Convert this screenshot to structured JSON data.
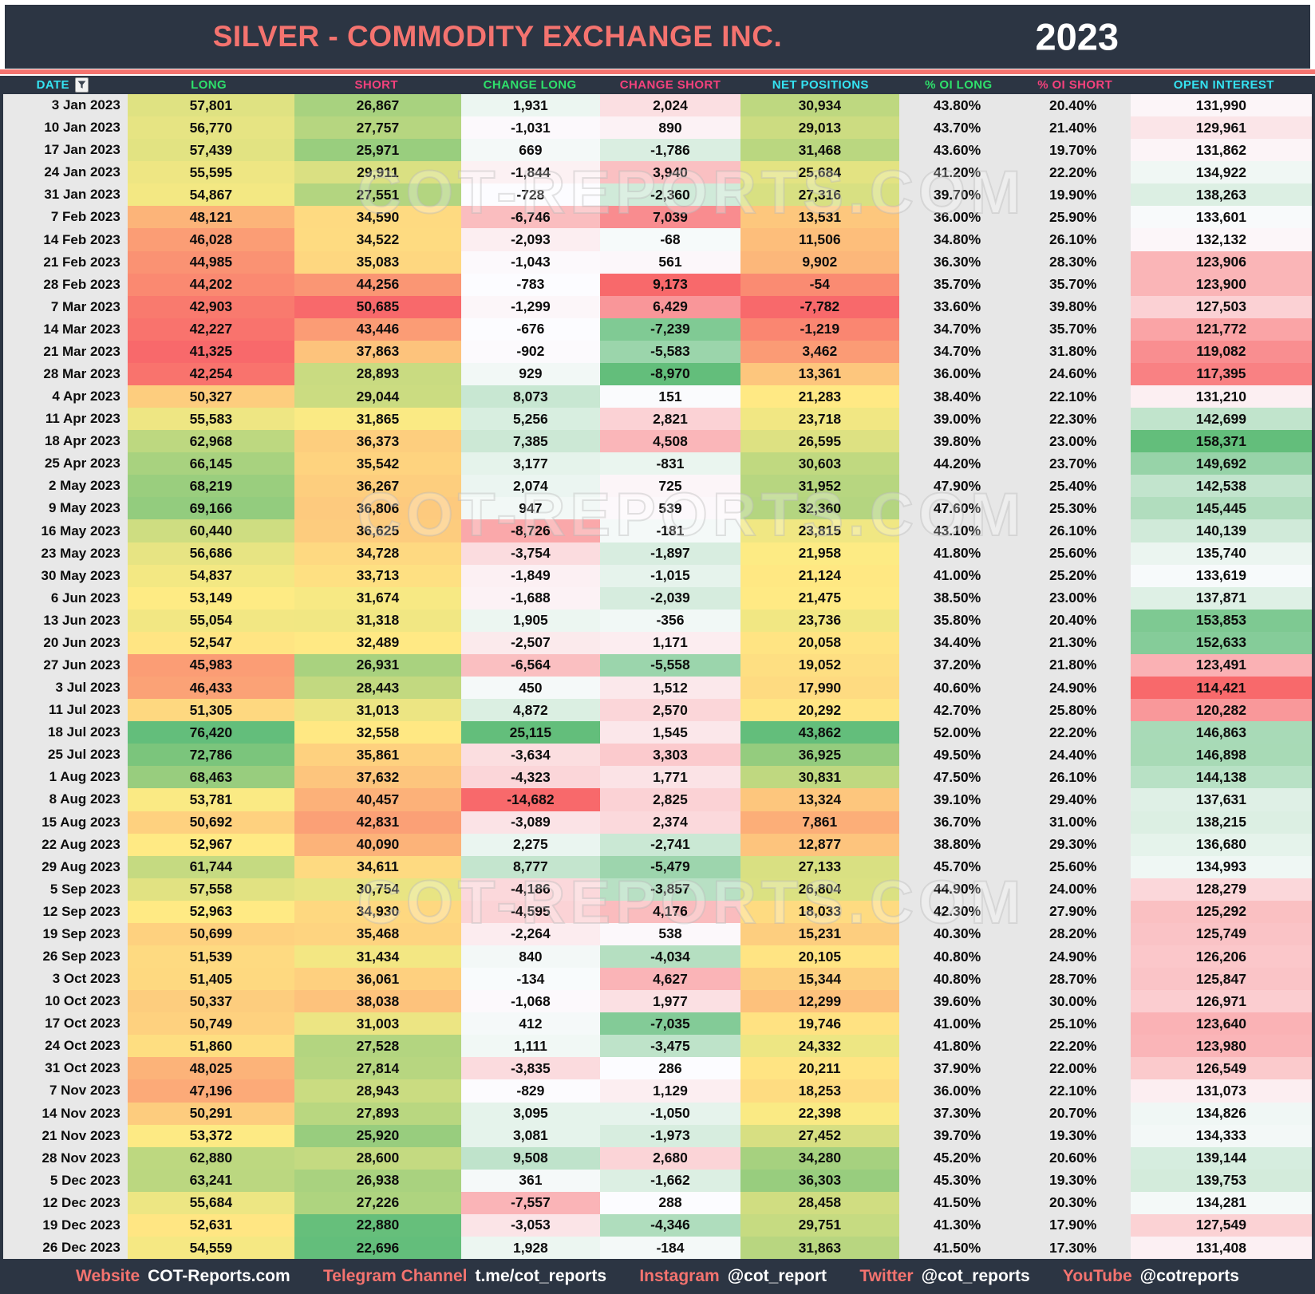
{
  "header": {
    "title": "SILVER - COMMODITY EXCHANGE INC.",
    "year": "2023"
  },
  "watermark": {
    "text": "COT-REPORTS.COM"
  },
  "colors": {
    "navy": "#2c3543",
    "accent_salmon": "#f4736f",
    "header_cyan": "#35e3f2",
    "header_green": "#2ee06b",
    "header_pink": "#f4417c",
    "date_column_bg": "#e8e8e8",
    "pct_column_bg": "#e7e7e7",
    "scale_red": "#F8696B",
    "scale_yellow": "#FFEB84",
    "scale_green": "#63BE7B",
    "scale_white": "#FCFCFF"
  },
  "chart_data": {
    "type": "table",
    "title": "SILVER - COMMODITY EXCHANGE INC.",
    "year": "2023",
    "legend_position": "none",
    "grid": false,
    "columns": [
      {
        "key": "date",
        "label": "DATE",
        "header_color": "cyan",
        "scale": "none",
        "format": "text",
        "width_pct": 9.5,
        "icon": "funnel-icon"
      },
      {
        "key": "long",
        "label": "LONG",
        "header_color": "green",
        "scale": "ryg",
        "format": "int",
        "width_pct": 12.75
      },
      {
        "key": "short",
        "label": "SHORT",
        "header_color": "pink",
        "scale": "gyr",
        "format": "int",
        "width_pct": 12.75
      },
      {
        "key": "change_long",
        "label": "CHANGE LONG",
        "header_color": "green",
        "scale": "rwg",
        "format": "int",
        "width_pct": 10.6
      },
      {
        "key": "change_short",
        "label": "CHANGE SHORT",
        "header_color": "pink",
        "scale": "gwr",
        "format": "int",
        "width_pct": 10.75
      },
      {
        "key": "net_positions",
        "label": "NET POSITIONS",
        "header_color": "cyan",
        "scale": "ryg",
        "format": "int",
        "width_pct": 12.1
      },
      {
        "key": "pct_oi_long",
        "label": "% OI LONG",
        "header_color": "green",
        "scale": "flat",
        "format": "pct",
        "width_pct": 8.9
      },
      {
        "key": "pct_oi_short",
        "label": "% OI SHORT",
        "header_color": "pink",
        "scale": "flat",
        "format": "pct",
        "width_pct": 8.8
      },
      {
        "key": "open_interest",
        "label": "OPEN INTEREST",
        "header_color": "cyan",
        "scale": "rwg",
        "format": "int",
        "width_pct": 13.85
      }
    ],
    "rows": [
      [
        "3 Jan 2023",
        57801,
        26867,
        1931,
        2024,
        30934,
        43.8,
        20.4,
        131990
      ],
      [
        "10 Jan 2023",
        56770,
        27757,
        -1031,
        890,
        29013,
        43.7,
        21.4,
        129961
      ],
      [
        "17 Jan 2023",
        57439,
        25971,
        669,
        -1786,
        31468,
        43.6,
        19.7,
        131862
      ],
      [
        "24 Jan 2023",
        55595,
        29911,
        -1844,
        3940,
        25684,
        41.2,
        22.2,
        134922
      ],
      [
        "31 Jan 2023",
        54867,
        27551,
        -728,
        -2360,
        27316,
        39.7,
        19.9,
        138263
      ],
      [
        "7 Feb 2023",
        48121,
        34590,
        -6746,
        7039,
        13531,
        36.0,
        25.9,
        133601
      ],
      [
        "14 Feb 2023",
        46028,
        34522,
        -2093,
        -68,
        11506,
        34.8,
        26.1,
        132132
      ],
      [
        "21 Feb 2023",
        44985,
        35083,
        -1043,
        561,
        9902,
        36.3,
        28.3,
        123906
      ],
      [
        "28 Feb 2023",
        44202,
        44256,
        -783,
        9173,
        -54,
        35.7,
        35.7,
        123900
      ],
      [
        "7 Mar 2023",
        42903,
        50685,
        -1299,
        6429,
        -7782,
        33.6,
        39.8,
        127503
      ],
      [
        "14 Mar 2023",
        42227,
        43446,
        -676,
        -7239,
        -1219,
        34.7,
        35.7,
        121772
      ],
      [
        "21 Mar 2023",
        41325,
        37863,
        -902,
        -5583,
        3462,
        34.7,
        31.8,
        119082
      ],
      [
        "28 Mar 2023",
        42254,
        28893,
        929,
        -8970,
        13361,
        36.0,
        24.6,
        117395
      ],
      [
        "4 Apr 2023",
        50327,
        29044,
        8073,
        151,
        21283,
        38.4,
        22.1,
        131210
      ],
      [
        "11 Apr 2023",
        55583,
        31865,
        5256,
        2821,
        23718,
        39.0,
        22.3,
        142699
      ],
      [
        "18 Apr 2023",
        62968,
        36373,
        7385,
        4508,
        26595,
        39.8,
        23.0,
        158371
      ],
      [
        "25 Apr 2023",
        66145,
        35542,
        3177,
        -831,
        30603,
        44.2,
        23.7,
        149692
      ],
      [
        "2 May 2023",
        68219,
        36267,
        2074,
        725,
        31952,
        47.9,
        25.4,
        142538
      ],
      [
        "9 May 2023",
        69166,
        36806,
        947,
        539,
        32360,
        47.6,
        25.3,
        145445
      ],
      [
        "16 May 2023",
        60440,
        36625,
        -8726,
        -181,
        23815,
        43.1,
        26.1,
        140139
      ],
      [
        "23 May 2023",
        56686,
        34728,
        -3754,
        -1897,
        21958,
        41.8,
        25.6,
        135740
      ],
      [
        "30 May 2023",
        54837,
        33713,
        -1849,
        -1015,
        21124,
        41.0,
        25.2,
        133619
      ],
      [
        "6 Jun 2023",
        53149,
        31674,
        -1688,
        -2039,
        21475,
        38.5,
        23.0,
        137871
      ],
      [
        "13 Jun 2023",
        55054,
        31318,
        1905,
        -356,
        23736,
        35.8,
        20.4,
        153853
      ],
      [
        "20 Jun 2023",
        52547,
        32489,
        -2507,
        1171,
        20058,
        34.4,
        21.3,
        152633
      ],
      [
        "27 Jun 2023",
        45983,
        26931,
        -6564,
        -5558,
        19052,
        37.2,
        21.8,
        123491
      ],
      [
        "3 Jul 2023",
        46433,
        28443,
        450,
        1512,
        17990,
        40.6,
        24.9,
        114421
      ],
      [
        "11 Jul 2023",
        51305,
        31013,
        4872,
        2570,
        20292,
        42.7,
        25.8,
        120282
      ],
      [
        "18 Jul 2023",
        76420,
        32558,
        25115,
        1545,
        43862,
        52.0,
        22.2,
        146863
      ],
      [
        "25 Jul 2023",
        72786,
        35861,
        -3634,
        3303,
        36925,
        49.5,
        24.4,
        146898
      ],
      [
        "1 Aug 2023",
        68463,
        37632,
        -4323,
        1771,
        30831,
        47.5,
        26.1,
        144138
      ],
      [
        "8 Aug 2023",
        53781,
        40457,
        -14682,
        2825,
        13324,
        39.1,
        29.4,
        137631
      ],
      [
        "15 Aug 2023",
        50692,
        42831,
        -3089,
        2374,
        7861,
        36.7,
        31.0,
        138215
      ],
      [
        "22 Aug 2023",
        52967,
        40090,
        2275,
        -2741,
        12877,
        38.8,
        29.3,
        136680
      ],
      [
        "29 Aug 2023",
        61744,
        34611,
        8777,
        -5479,
        27133,
        45.7,
        25.6,
        134993
      ],
      [
        "5 Sep 2023",
        57558,
        30754,
        -4186,
        -3857,
        26804,
        44.9,
        24.0,
        128279
      ],
      [
        "12 Sep 2023",
        52963,
        34930,
        -4595,
        4176,
        18033,
        42.3,
        27.9,
        125292
      ],
      [
        "19 Sep 2023",
        50699,
        35468,
        -2264,
        538,
        15231,
        40.3,
        28.2,
        125749
      ],
      [
        "26 Sep 2023",
        51539,
        31434,
        840,
        -4034,
        20105,
        40.8,
        24.9,
        126206
      ],
      [
        "3 Oct 2023",
        51405,
        36061,
        -134,
        4627,
        15344,
        40.8,
        28.7,
        125847
      ],
      [
        "10 Oct 2023",
        50337,
        38038,
        -1068,
        1977,
        12299,
        39.6,
        30.0,
        126971
      ],
      [
        "17 Oct 2023",
        50749,
        31003,
        412,
        -7035,
        19746,
        41.0,
        25.1,
        123640
      ],
      [
        "24 Oct 2023",
        51860,
        27528,
        1111,
        -3475,
        24332,
        41.8,
        22.2,
        123980
      ],
      [
        "31 Oct 2023",
        48025,
        27814,
        -3835,
        286,
        20211,
        37.9,
        22.0,
        126549
      ],
      [
        "7 Nov 2023",
        47196,
        28943,
        -829,
        1129,
        18253,
        36.0,
        22.1,
        131073
      ],
      [
        "14 Nov 2023",
        50291,
        27893,
        3095,
        -1050,
        22398,
        37.3,
        20.7,
        134826
      ],
      [
        "21 Nov 2023",
        53372,
        25920,
        3081,
        -1973,
        27452,
        39.7,
        19.3,
        134333
      ],
      [
        "28 Nov 2023",
        62880,
        28600,
        9508,
        2680,
        34280,
        45.2,
        20.6,
        139144
      ],
      [
        "5 Dec 2023",
        63241,
        26938,
        361,
        -1662,
        36303,
        45.3,
        19.3,
        139753
      ],
      [
        "12 Dec 2023",
        55684,
        27226,
        -7557,
        288,
        28458,
        41.5,
        20.3,
        134281
      ],
      [
        "19 Dec 2023",
        52631,
        22880,
        -3053,
        -4346,
        29751,
        41.3,
        17.9,
        127549
      ],
      [
        "26 Dec 2023",
        54559,
        22696,
        1928,
        -184,
        31863,
        41.5,
        17.3,
        131408
      ]
    ]
  },
  "footer": {
    "items": [
      {
        "label": "Website",
        "value": "COT-Reports.com"
      },
      {
        "label": "Telegram Channel",
        "value": "t.me/cot_reports"
      },
      {
        "label": "Instagram",
        "value": "@cot_report"
      },
      {
        "label": "Twitter",
        "value": "@cot_reports"
      },
      {
        "label": "YouTube",
        "value": "@cotreports"
      }
    ]
  }
}
